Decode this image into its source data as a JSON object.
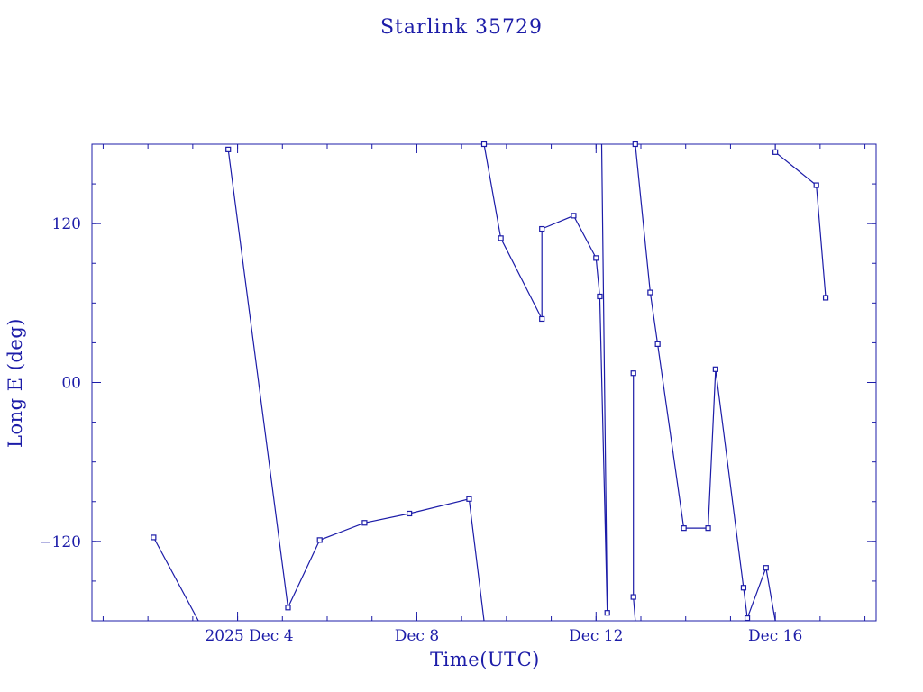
{
  "chart_data": {
    "type": "scatter",
    "title": "Starlink 35729",
    "xlabel": "Time(UTC)",
    "ylabel": "Long E (deg)",
    "x_tick_labels": [
      "2025 Dec  4",
      "Dec  8",
      "Dec 12",
      "Dec 16"
    ],
    "x_ticks": [
      "2025-12-04",
      "2025-12-08",
      "2025-12-12",
      "2025-12-16"
    ],
    "y_tick_labels": [
      "120",
      "00",
      "−120"
    ],
    "y_ticks": [
      120,
      0,
      -120
    ],
    "xlim": [
      "2025-12-00T18:00",
      "2025-12-18T06:00"
    ],
    "ylim": [
      -180,
      180
    ],
    "grid": false,
    "legend": "none",
    "color": "#1c1ca8",
    "series": [
      {
        "points": [
          {
            "t": "2025-12-02T03:00",
            "lon": -117
          },
          {
            "t": "2025-12-03T03:00",
            "lon": -180,
            "wrap": true
          },
          {
            "t": "2025-12-03T19:00",
            "lon": 176
          },
          {
            "t": "2025-12-05T03:00",
            "lon": -170
          },
          {
            "t": "2025-12-05T20:00",
            "lon": -119
          },
          {
            "t": "2025-12-06T20:00",
            "lon": -106
          },
          {
            "t": "2025-12-07T20:00",
            "lon": -99
          },
          {
            "t": "2025-12-09T04:00",
            "lon": -88
          },
          {
            "t": "2025-12-09T12:00",
            "lon": -180,
            "wrap": true
          },
          {
            "t": "2025-12-09T12:00",
            "lon": 180
          },
          {
            "t": "2025-12-09T21:00",
            "lon": 109
          },
          {
            "t": "2025-12-10T19:00",
            "lon": 48
          },
          {
            "t": "2025-12-10T19:00",
            "lon": 116
          },
          {
            "t": "2025-12-11T12:00",
            "lon": 126
          },
          {
            "t": "2025-12-12T00:00",
            "lon": 94
          },
          {
            "t": "2025-12-12T02:00",
            "lon": 65
          },
          {
            "t": "2025-12-12T06:00",
            "lon": -174
          },
          {
            "t": "2025-12-12T03:00",
            "lon": 180,
            "wrap": true
          },
          {
            "t": "2025-12-12T20:00",
            "lon": 7
          },
          {
            "t": "2025-12-12T20:00",
            "lon": -162
          },
          {
            "t": "2025-12-12T21:00",
            "lon": -180,
            "wrap": true
          },
          {
            "t": "2025-12-12T21:00",
            "lon": 180
          },
          {
            "t": "2025-12-13T05:00",
            "lon": 68
          },
          {
            "t": "2025-12-13T09:00",
            "lon": 29
          },
          {
            "t": "2025-12-13T23:00",
            "lon": -110
          },
          {
            "t": "2025-12-14T12:00",
            "lon": -110
          },
          {
            "t": "2025-12-14T16:00",
            "lon": 10
          },
          {
            "t": "2025-12-15T07:00",
            "lon": -155
          },
          {
            "t": "2025-12-15T09:00",
            "lon": -178
          },
          {
            "t": "2025-12-15T19:00",
            "lon": -140
          },
          {
            "t": "2025-12-16T00:00",
            "lon": -180,
            "wrap": true
          },
          {
            "t": "2025-12-16T00:00",
            "lon": 174
          },
          {
            "t": "2025-12-16T22:00",
            "lon": 149
          },
          {
            "t": "2025-12-17T03:00",
            "lon": 64
          }
        ]
      }
    ]
  }
}
